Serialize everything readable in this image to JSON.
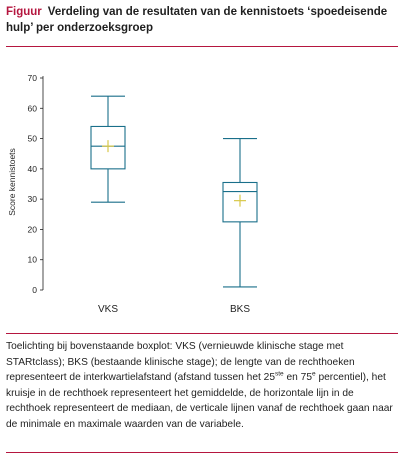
{
  "figure": {
    "label": "Figuur",
    "title": "Verdeling van de resultaten van de kennistoets ‘spoedeisende hulp’ per onderzoeksgroep"
  },
  "caption": {
    "part1": "Toelichting bij bovenstaande boxplot: VKS (vernieuwde klinische stage met STARtclass); BKS (bestaande klinische stage); de lengte van de rechthoeken representeert de interkwartielafstand (afstand tussen het 25",
    "sup1": "ste",
    "part2": " en 75",
    "sup2": "e",
    "part3": " percentiel), het kruisje in de rechthoek representeert het gemiddelde, de horizontale lijn in de rechthoek representeert de mediaan, de verticale lijnen vanaf de rechthoek gaan naar de minimale en maximale waarden van de variabele."
  },
  "chart_data": {
    "type": "boxplot",
    "title": "",
    "xlabel": "",
    "ylabel": "Score kennistoets",
    "ylim": [
      0,
      70
    ],
    "yticks": [
      "0",
      "10",
      "20",
      "30",
      "40",
      "50",
      "60",
      "70"
    ],
    "categories": [
      "VKS",
      "BKS"
    ],
    "series": [
      {
        "category": "VKS",
        "min": 29,
        "q1": 40,
        "median": 47.5,
        "q3": 54,
        "max": 64,
        "mean": 47.5
      },
      {
        "category": "BKS",
        "min": 1,
        "q1": 22.5,
        "median": 32.5,
        "q3": 35.5,
        "max": 50,
        "mean": 29.5
      }
    ],
    "grid": false,
    "colors": {
      "box": "#1a6f8a",
      "mean_marker": "#d8c84a",
      "axis": "#1f1f1f"
    }
  }
}
